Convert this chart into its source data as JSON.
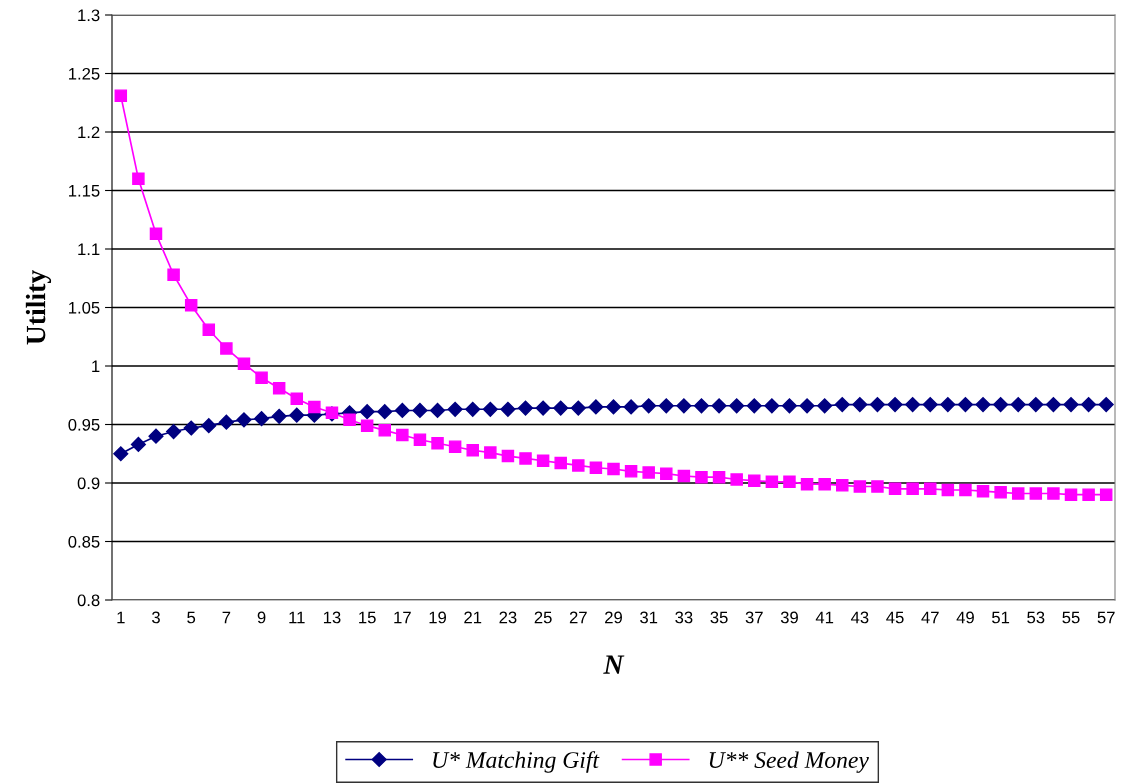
{
  "chart_data": {
    "type": "line",
    "xlabel": "N",
    "ylabel": "Utility",
    "categories": [
      "1",
      null,
      "3",
      null,
      "5",
      null,
      "7",
      null,
      "9",
      null,
      "11",
      null,
      "13",
      null,
      "15",
      null,
      "17",
      null,
      "19",
      null,
      "21",
      null,
      "23",
      null,
      "25",
      null,
      "27",
      null,
      "29",
      null,
      "31",
      null,
      "33",
      null,
      "35",
      null,
      "37",
      null,
      "39",
      null,
      "41",
      null,
      "43",
      null,
      "45",
      null,
      "47",
      null,
      "49",
      null,
      "51",
      null,
      "53",
      null,
      "55",
      null,
      "57"
    ],
    "series": [
      {
        "name": "U* Matching Gift",
        "color": "#000080",
        "marker": "diamond",
        "values": [
          0.925,
          0.933,
          0.94,
          0.944,
          0.947,
          0.949,
          0.952,
          0.954,
          0.955,
          0.957,
          0.958,
          0.958,
          0.959,
          0.96,
          0.961,
          0.961,
          0.962,
          0.962,
          0.962,
          0.963,
          0.963,
          0.963,
          0.963,
          0.964,
          0.964,
          0.964,
          0.964,
          0.965,
          0.965,
          0.965,
          0.966,
          0.966,
          0.966,
          0.966,
          0.966,
          0.966,
          0.966,
          0.966,
          0.966,
          0.966,
          0.966,
          0.967,
          0.967,
          0.967,
          0.967,
          0.967,
          0.967,
          0.967,
          0.967,
          0.967,
          0.967,
          0.967,
          0.967,
          0.967,
          0.967,
          0.967,
          0.967
        ]
      },
      {
        "name": "U** Seed Money",
        "color": "#ff00ff",
        "marker": "square",
        "values": [
          1.231,
          1.16,
          1.113,
          1.078,
          1.052,
          1.031,
          1.015,
          1.002,
          0.99,
          0.981,
          0.972,
          0.965,
          0.96,
          0.954,
          0.949,
          0.945,
          0.941,
          0.937,
          0.934,
          0.931,
          0.928,
          0.926,
          0.923,
          0.921,
          0.919,
          0.917,
          0.915,
          0.913,
          0.912,
          0.91,
          0.909,
          0.908,
          0.906,
          0.905,
          0.905,
          0.903,
          0.902,
          0.901,
          0.901,
          0.899,
          0.899,
          0.898,
          0.897,
          0.897,
          0.895,
          0.895,
          0.895,
          0.894,
          0.894,
          0.893,
          0.892,
          0.891,
          0.891,
          0.891,
          0.89,
          0.89,
          0.89
        ]
      }
    ],
    "ylim": [
      0.8,
      1.3
    ],
    "yticks": [
      0.8,
      0.85,
      0.9,
      0.95,
      1,
      1.05,
      1.1,
      1.15,
      1.2,
      1.25,
      1.3
    ],
    "grid": "y",
    "legend": "bottom",
    "line_style": "solid"
  }
}
